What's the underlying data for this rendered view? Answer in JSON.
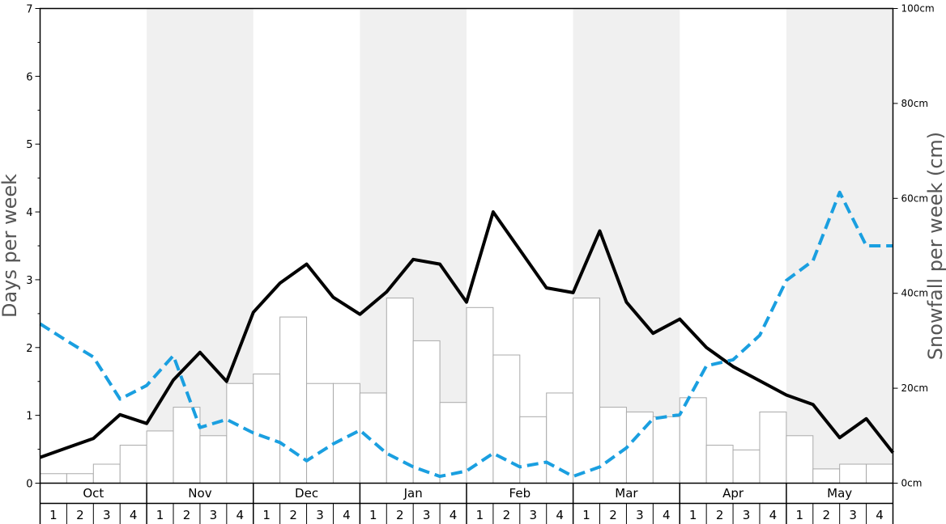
{
  "chart_data": {
    "type": "bar+line",
    "title": "",
    "months": [
      "Oct",
      "Nov",
      "Dec",
      "Jan",
      "Feb",
      "Mar",
      "Apr",
      "May"
    ],
    "weeks": [
      "1",
      "2",
      "3",
      "4"
    ],
    "ylabel_left": "Days per week",
    "ylabel_right": "Snowfall per week (cm)",
    "ylim_left": [
      0,
      7
    ],
    "ylim_right": [
      0,
      100
    ],
    "left_ticks": [
      "0",
      "1",
      "2",
      "3",
      "4",
      "5",
      "6",
      "7"
    ],
    "right_ticks": [
      "0cm",
      "20cm",
      "40cm",
      "60cm",
      "80cm",
      "100cm"
    ],
    "shaded_months": [
      "Nov",
      "Jan",
      "Mar",
      "May"
    ],
    "colors": {
      "snowfall_bars_fill": "#ffffff",
      "snowfall_bars_stroke": "#aaaaaa",
      "black_line": "#000000",
      "blue_dashed_line": "#1a9fe0",
      "shade": "#f0f0f0"
    },
    "series": [
      {
        "kind": "bar",
        "axis": "right",
        "unit": "cm",
        "values": [
          2,
          2,
          4,
          8,
          11,
          16,
          10,
          21,
          23,
          35,
          21,
          21,
          19,
          39,
          30,
          17,
          37,
          27,
          14,
          19,
          39,
          16,
          15,
          14,
          18,
          8,
          7,
          15,
          10,
          3,
          4,
          4
        ]
      },
      {
        "kind": "line",
        "axis": "left",
        "style": "solid",
        "color": "#000000",
        "values": [
          0.38,
          0.52,
          0.66,
          1.01,
          0.88,
          1.52,
          1.93,
          1.5,
          2.52,
          2.95,
          3.23,
          2.74,
          2.49,
          2.82,
          3.3,
          3.23,
          2.67,
          4.0,
          3.44,
          2.88,
          2.81,
          3.72,
          2.67,
          2.21,
          2.42,
          2.0,
          1.72,
          1.51,
          1.3,
          1.16,
          0.67,
          0.95,
          0.45
        ]
      },
      {
        "kind": "line",
        "axis": "left",
        "style": "dashed",
        "color": "#1a9fe0",
        "values": [
          2.35,
          2.1,
          1.86,
          1.24,
          1.44,
          1.88,
          0.82,
          0.94,
          0.74,
          0.6,
          0.33,
          0.58,
          0.78,
          0.44,
          0.24,
          0.1,
          0.18,
          0.44,
          0.24,
          0.31,
          0.1,
          0.24,
          0.52,
          0.95,
          1.01,
          1.73,
          1.82,
          2.18,
          2.99,
          3.28,
          4.29,
          3.5,
          3.5
        ]
      }
    ]
  }
}
